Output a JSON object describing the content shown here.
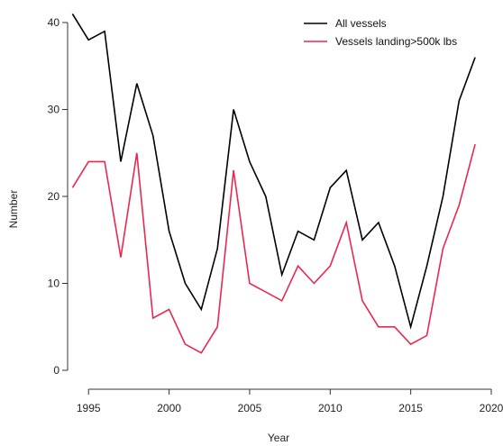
{
  "chart_data": {
    "type": "line",
    "xlabel": "Year",
    "ylabel": "Number",
    "xlim": [
      1993.7,
      2020
    ],
    "ylim": [
      0,
      40
    ],
    "x_ticks": [
      1995,
      2000,
      2005,
      2010,
      2015,
      2020
    ],
    "y_ticks": [
      0,
      10,
      20,
      30,
      40
    ],
    "legend_position": "top-right",
    "grid": false,
    "x": [
      1994,
      1995,
      1996,
      1997,
      1998,
      1999,
      2000,
      2001,
      2002,
      2003,
      2004,
      2005,
      2006,
      2007,
      2008,
      2009,
      2010,
      2011,
      2012,
      2013,
      2014,
      2015,
      2016,
      2017,
      2018,
      2019
    ],
    "series": [
      {
        "name": "All vessels",
        "color": "#000000",
        "values": [
          41,
          38,
          39,
          24,
          33,
          27,
          16,
          10,
          7,
          14,
          30,
          24,
          20,
          11,
          16,
          15,
          21,
          23,
          15,
          17,
          12,
          5,
          12,
          20,
          31,
          36
        ]
      },
      {
        "name": "Vessels landing>500k lbs",
        "color": "#e8294f",
        "values": [
          21,
          24,
          24,
          13,
          25,
          6,
          7,
          3,
          2,
          5,
          23,
          10,
          9,
          8,
          12,
          10,
          12,
          17,
          8,
          5,
          5,
          3,
          4,
          14,
          19,
          26
        ]
      }
    ]
  }
}
